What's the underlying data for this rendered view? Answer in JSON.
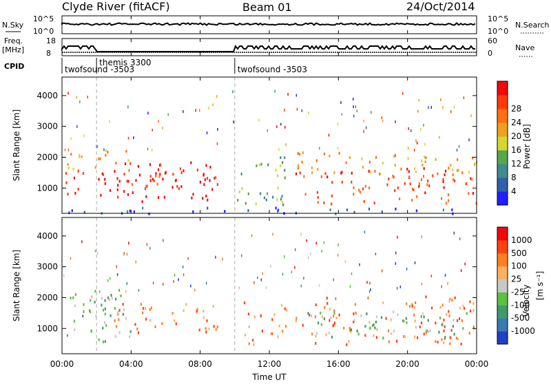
{
  "header": {
    "title": "Clyde River (fitACF)",
    "beam": "Beam 01",
    "date": "24/Oct/2014"
  },
  "strips": {
    "nsky_label": "N.Sky",
    "nsky_ticks": [
      "10^5",
      "10^0"
    ],
    "nsearch_label": "N.Search",
    "nsearch_ticks": [
      "10^5",
      "10^0"
    ],
    "freq_label": "Freq.",
    "freq_unit": "[MHz]",
    "freq_ticks": [
      "18",
      "8"
    ],
    "nave_label": "Nave",
    "nave_ticks": [
      "60",
      "0"
    ],
    "cpid_label": "CPID",
    "cpid_segments": [
      {
        "label": "twofsound -3503",
        "start_hour": 0.0
      },
      {
        "label": "themis 3300",
        "start_hour": 2.0
      },
      {
        "label": "twofsound -3503",
        "start_hour": 10.0
      }
    ]
  },
  "axes": {
    "x_ticks": [
      "00:00",
      "04:00",
      "08:00",
      "12:00",
      "16:00",
      "20:00",
      "00:00"
    ],
    "x_label": "Time UT",
    "y_label": "Slant Range [km]",
    "y_ticks": [
      "1000",
      "2000",
      "3000",
      "4000"
    ]
  },
  "power_scale": {
    "label": "Power [dB]",
    "ticks": [
      "4",
      "8",
      "12",
      "16",
      "20",
      "24",
      "28"
    ],
    "colors": [
      "#1f1fff",
      "#3060a8",
      "#3f8c8c",
      "#57a650",
      "#d6d633",
      "#f0a020",
      "#ff7010",
      "#ff3a0a",
      "#ee0a0a"
    ]
  },
  "velocity_scale": {
    "label": "Velocity",
    "unit": "[m s⁻¹]",
    "ticks": [
      "1000",
      "500",
      "100",
      "25",
      "-25",
      "-100",
      "-500",
      "-1000"
    ],
    "colors": [
      "#2040c8",
      "#3a7ab0",
      "#3f9a6e",
      "#5cc040",
      "#c8c8c8",
      "#ffb060",
      "#ff8020",
      "#ff4010",
      "#ee0a0a"
    ]
  },
  "chart_data": {
    "type": "heatmap",
    "x_range_hours": [
      0,
      24
    ],
    "y_range_km": [
      180,
      4600
    ],
    "panels": [
      {
        "name": "Power",
        "regions": [
          {
            "t0": 0.2,
            "t1": 9.2,
            "r0": 600,
            "r1": 1600,
            "level": 8
          },
          {
            "t0": 0.2,
            "t1": 4.0,
            "r0": 1600,
            "r1": 2300,
            "level": 5
          },
          {
            "t0": 3.0,
            "t1": 9.0,
            "r0": 1100,
            "r1": 1900,
            "level": 7
          },
          {
            "t0": 10.0,
            "t1": 13.0,
            "r0": 500,
            "r1": 2100,
            "level": 3
          },
          {
            "t0": 13.5,
            "t1": 24.0,
            "r0": 500,
            "r1": 1700,
            "level": 7
          },
          {
            "t0": 13.5,
            "t1": 24.0,
            "r0": 1500,
            "r1": 2200,
            "level": 5
          },
          {
            "t0": 0.2,
            "t1": 24.0,
            "r0": 200,
            "r1": 400,
            "level": 1
          }
        ]
      },
      {
        "name": "Velocity",
        "regions": [
          {
            "t0": 0.2,
            "t1": 4.0,
            "r0": 600,
            "r1": 2300,
            "level": 3
          },
          {
            "t0": 3.0,
            "t1": 9.0,
            "r0": 900,
            "r1": 1900,
            "level": 6
          },
          {
            "t0": 10.5,
            "t1": 13.0,
            "r0": 500,
            "r1": 1900,
            "level": 6
          },
          {
            "t0": 13.5,
            "t1": 24.0,
            "r0": 500,
            "r1": 2100,
            "level": 6
          },
          {
            "t0": 14.0,
            "t1": 23.5,
            "r0": 700,
            "r1": 1600,
            "level": 3
          },
          {
            "t0": 0.2,
            "t1": 3.0,
            "r0": 1600,
            "r1": 2100,
            "level": 4
          }
        ]
      }
    ],
    "cpid_markers_hours": [
      2.0,
      10.0
    ]
  }
}
